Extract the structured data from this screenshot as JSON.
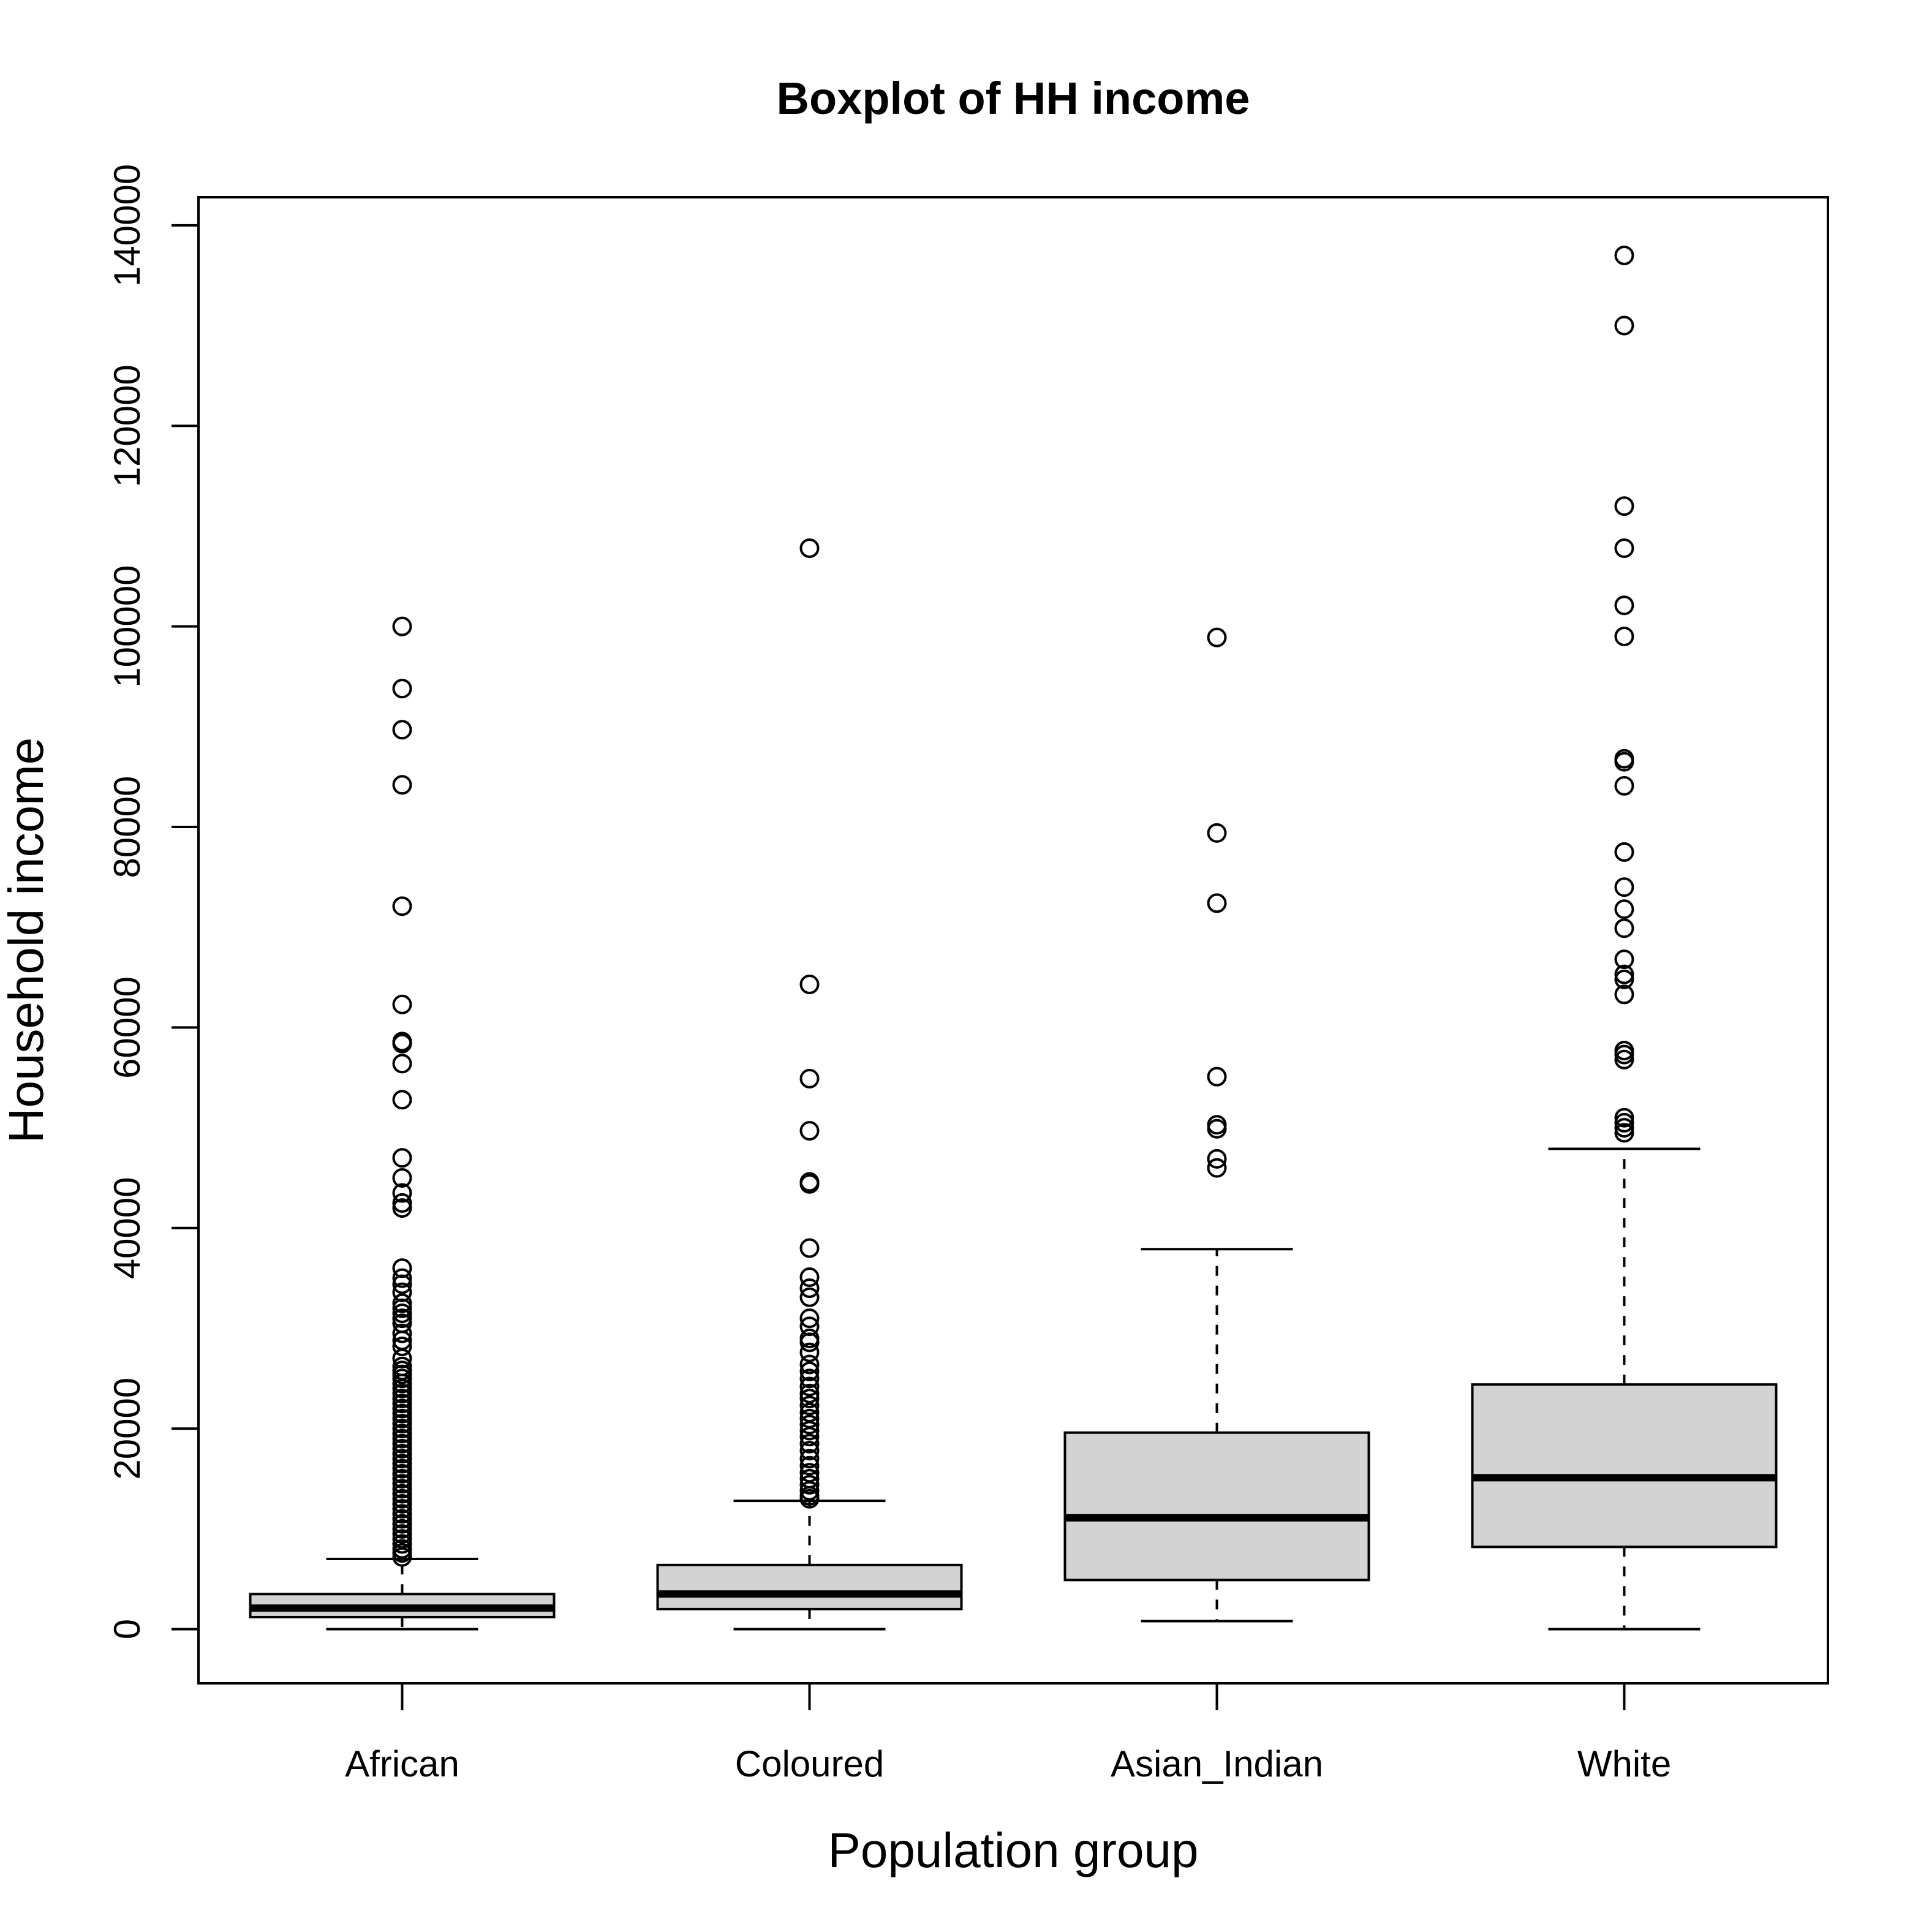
{
  "chart_data": {
    "type": "boxplot",
    "title": "Boxplot of HH income",
    "xlabel": "Population group",
    "ylabel": "Household income",
    "ylim": [
      -5400,
      142800
    ],
    "yticks": [
      0,
      20000,
      40000,
      60000,
      80000,
      100000,
      120000,
      140000
    ],
    "ytick_labels": [
      "0",
      "20000",
      "40000",
      "60000",
      "80000",
      "100000",
      "120000",
      "140000"
    ],
    "grid": false,
    "legend": "none",
    "colors": {
      "box_fill": "#d3d3d3",
      "stroke": "#000000",
      "background": "#ffffff"
    },
    "categories": [
      "African",
      "Coloured",
      "Asian_Indian",
      "White"
    ],
    "boxes": [
      {
        "name": "African",
        "whisker_low": 0,
        "q1": 1200,
        "median": 2100,
        "q3": 3500,
        "whisker_high": 7000,
        "outliers": [
          100000,
          93800,
          89700,
          84200,
          72100,
          62300,
          58600,
          58400,
          56400,
          52800,
          47000,
          45000,
          43500,
          42500,
          42000,
          36000,
          35000,
          34400,
          33600,
          32500,
          32000,
          31500,
          31000,
          30500,
          29500,
          28800,
          28200,
          27000,
          26200,
          25800,
          25400,
          25000,
          24500,
          24000,
          23500,
          23000,
          22500,
          22000,
          21500,
          21000,
          20500,
          20000,
          19500,
          19000,
          18500,
          18000,
          17500,
          17000,
          16500,
          16000,
          15500,
          15000,
          14500,
          14000,
          13500,
          13000,
          12500,
          12000,
          11500,
          11000,
          10500,
          10000,
          9500,
          9000,
          8500,
          8000,
          7600,
          7200
        ]
      },
      {
        "name": "Coloured",
        "whisker_low": 0,
        "q1": 2000,
        "median": 3500,
        "q3": 6400,
        "whisker_high": 12800,
        "outliers": [
          107800,
          64300,
          54900,
          49700,
          44600,
          44400,
          38000,
          35100,
          34000,
          33100,
          31000,
          30200,
          29000,
          28600,
          27600,
          26400,
          25700,
          25000,
          24200,
          23500,
          23000,
          22300,
          21600,
          21000,
          20400,
          19800,
          19200,
          18500,
          17800,
          17000,
          16300,
          15600,
          15000,
          14400,
          13800,
          13300,
          13000
        ]
      },
      {
        "name": "Asian_Indian",
        "whisker_low": 800,
        "q1": 4900,
        "median": 11100,
        "q3": 19600,
        "whisker_high": 37900,
        "outliers": [
          98900,
          79400,
          72400,
          55100,
          50300,
          49900,
          46900,
          46000
        ]
      },
      {
        "name": "White",
        "whisker_low": 0,
        "q1": 8200,
        "median": 15100,
        "q3": 24400,
        "whisker_high": 47900,
        "outliers": [
          137000,
          130000,
          112000,
          107800,
          102100,
          99000,
          86800,
          86500,
          84100,
          77500,
          74000,
          71800,
          69900,
          66800,
          65300,
          64800,
          63300,
          57700,
          57300,
          56800,
          51000,
          50500,
          50000,
          49500
        ]
      }
    ]
  }
}
